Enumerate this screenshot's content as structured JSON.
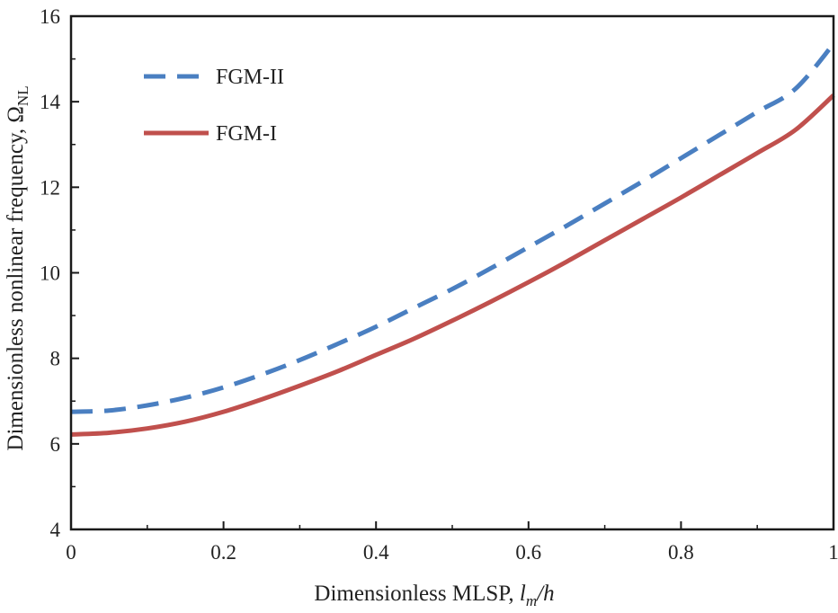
{
  "chart_data": {
    "type": "line",
    "title": "",
    "xlabel": {
      "prefix": "Dimensionless MLSP, ",
      "var": "l",
      "sub": "m",
      "suffix": "/h"
    },
    "ylabel": {
      "prefix": "Dimensionless nonlinear frequency, ",
      "symbol": "Ω",
      "sub": "NL"
    },
    "xlim": [
      0,
      1
    ],
    "ylim": [
      4,
      16
    ],
    "xticks": [
      0,
      0.2,
      0.4,
      0.6,
      0.8,
      1
    ],
    "xtick_labels": [
      "0",
      "0.2",
      "0.4",
      "0.6",
      "0.8",
      "1"
    ],
    "yticks": [
      4,
      6,
      8,
      10,
      12,
      14,
      16
    ],
    "ytick_labels": [
      "4",
      "6",
      "8",
      "10",
      "12",
      "14",
      "16"
    ],
    "grid": false,
    "legend_position": "top-left",
    "x": [
      0,
      0.05,
      0.1,
      0.15,
      0.2,
      0.25,
      0.3,
      0.35,
      0.4,
      0.45,
      0.5,
      0.55,
      0.6,
      0.65,
      0.7,
      0.75,
      0.8,
      0.85,
      0.9,
      0.95,
      1.0
    ],
    "series": [
      {
        "name": "FGM-II",
        "color": "#4a7fc1",
        "style": "dashed",
        "values": [
          6.75,
          6.78,
          6.9,
          7.08,
          7.32,
          7.62,
          7.96,
          8.34,
          8.74,
          9.18,
          9.62,
          10.1,
          10.6,
          11.1,
          11.62,
          12.14,
          12.68,
          13.22,
          13.76,
          14.3,
          15.35
        ]
      },
      {
        "name": "FGM-I",
        "color": "#c0504d",
        "style": "solid",
        "values": [
          6.22,
          6.26,
          6.36,
          6.52,
          6.75,
          7.04,
          7.36,
          7.7,
          8.08,
          8.46,
          8.88,
          9.32,
          9.78,
          10.26,
          10.76,
          11.26,
          11.76,
          12.28,
          12.8,
          13.34,
          14.15
        ]
      }
    ]
  }
}
